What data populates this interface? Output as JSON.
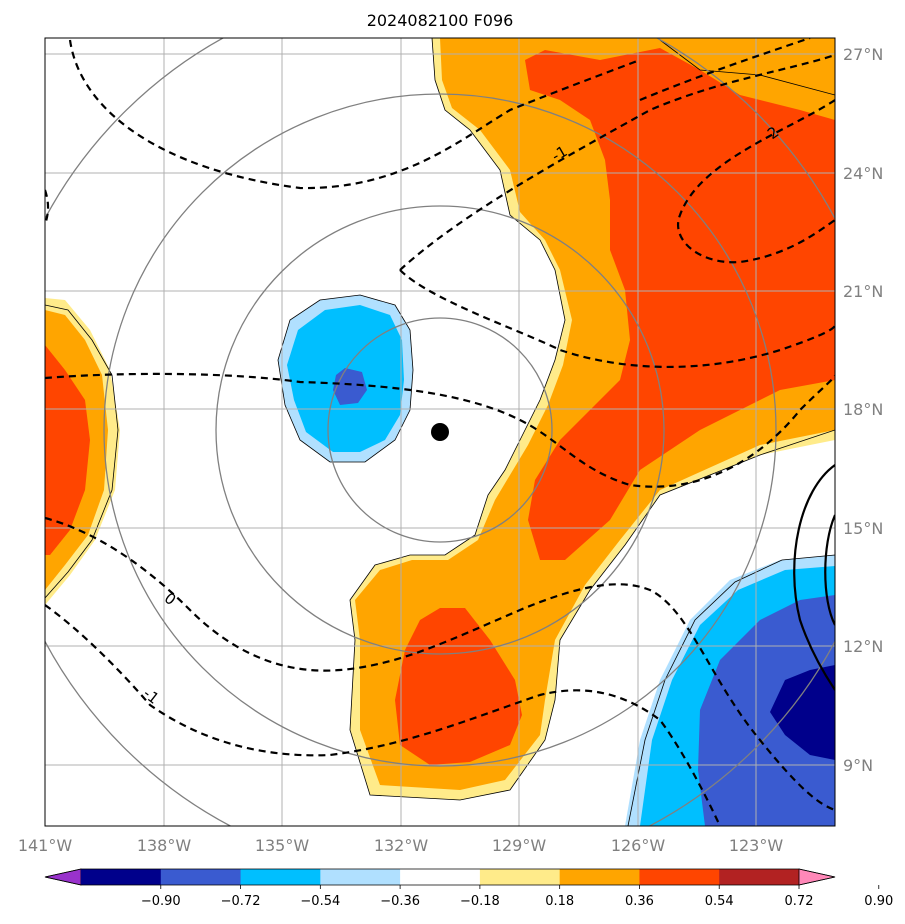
{
  "title": "2024082100 F096",
  "lon_labels": [
    "141°W",
    "138°W",
    "135°W",
    "132°W",
    "129°W",
    "126°W",
    "123°W"
  ],
  "lat_labels": [
    "27°N",
    "24°N",
    "21°N",
    "18°N",
    "15°N",
    "12°N",
    "9°N"
  ],
  "contour_labels": [
    "-1",
    "2",
    "0",
    "-1"
  ],
  "colorbar": {
    "ticks": [
      "−0.90",
      "−0.72",
      "−0.54",
      "−0.36",
      "−0.18",
      "0.18",
      "0.36",
      "0.54",
      "0.72",
      "0.90"
    ],
    "colors": [
      "#9932cc",
      "#00008b",
      "#3a5bd0",
      "#00bfff",
      "#b0e0ff",
      "#ffffff",
      "#ffeb8a",
      "#ffa500",
      "#ff4500",
      "#b22222",
      "#ff88b8"
    ]
  },
  "colors": {
    "light_yellow": "#ffeb8a",
    "orange": "#ffa500",
    "red_orange": "#ff4500",
    "light_blue": "#b0e0ff",
    "deep_sky_blue": "#00bfff",
    "royal_blue": "#3a5bd0",
    "navy": "#00008b",
    "grid": "#b0b0b0",
    "range_ring": "#808080"
  },
  "center_marker": "storm-center-dot"
}
